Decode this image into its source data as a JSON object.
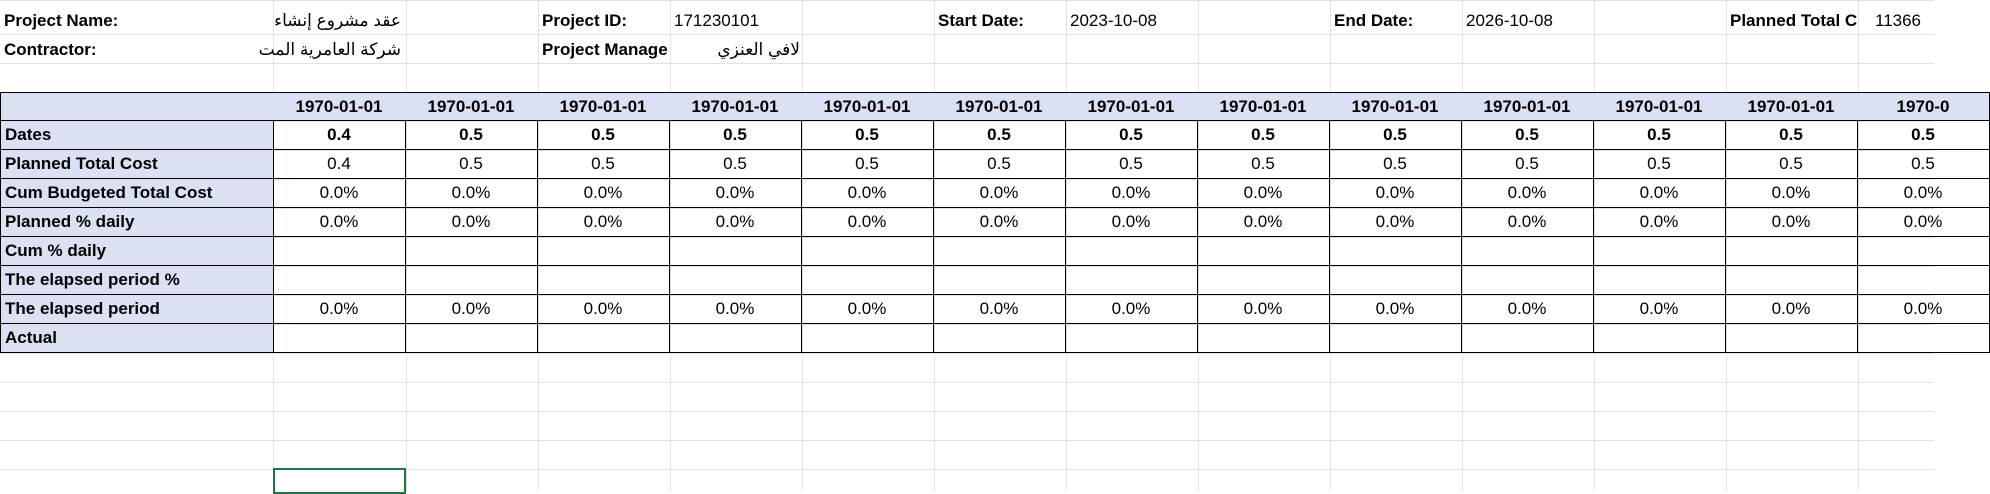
{
  "info": {
    "project_name_label": "Project Name:",
    "project_name_value": "عقد مشروع إنشاء",
    "contractor_label": "Contractor:",
    "contractor_value": "شركة العامرية المت",
    "project_id_label": "Project ID:",
    "project_id_value": "171230101",
    "project_manager_label": "Project Manage",
    "project_manager_value": "لافي العنزي",
    "start_date_label": "Start Date:",
    "start_date_value": "2023-10-08",
    "end_date_label": "End Date:",
    "end_date_value": "2026-10-08",
    "planned_total_label": "Planned Total C",
    "planned_total_value": "11366"
  },
  "table": {
    "header_dates": [
      "1970-01-01",
      "1970-01-01",
      "1970-01-01",
      "1970-01-01",
      "1970-01-01",
      "1970-01-01",
      "1970-01-01",
      "1970-01-01",
      "1970-01-01",
      "1970-01-01",
      "1970-01-01",
      "1970-01-01",
      "1970-0"
    ],
    "rows": [
      {
        "label": "Dates",
        "bold": true,
        "values": [
          "0.4",
          "0.5",
          "0.5",
          "0.5",
          "0.5",
          "0.5",
          "0.5",
          "0.5",
          "0.5",
          "0.5",
          "0.5",
          "0.5",
          "0.5"
        ]
      },
      {
        "label": "Planned Total Cost",
        "bold": false,
        "values": [
          "0.4",
          "0.5",
          "0.5",
          "0.5",
          "0.5",
          "0.5",
          "0.5",
          "0.5",
          "0.5",
          "0.5",
          "0.5",
          "0.5",
          "0.5"
        ]
      },
      {
        "label": "Cum Budgeted Total Cost",
        "bold": false,
        "values": [
          "0.0%",
          "0.0%",
          "0.0%",
          "0.0%",
          "0.0%",
          "0.0%",
          "0.0%",
          "0.0%",
          "0.0%",
          "0.0%",
          "0.0%",
          "0.0%",
          "0.0%"
        ]
      },
      {
        "label": "Planned % daily",
        "bold": false,
        "values": [
          "0.0%",
          "0.0%",
          "0.0%",
          "0.0%",
          "0.0%",
          "0.0%",
          "0.0%",
          "0.0%",
          "0.0%",
          "0.0%",
          "0.0%",
          "0.0%",
          "0.0%"
        ]
      },
      {
        "label": "Cum % daily",
        "bold": false,
        "values": [
          "",
          "",
          "",
          "",
          "",
          "",
          "",
          "",
          "",
          "",
          "",
          "",
          ""
        ]
      },
      {
        "label": "The elapsed period %",
        "bold": false,
        "values": [
          "",
          "",
          "",
          "",
          "",
          "",
          "",
          "",
          "",
          "",
          "",
          "",
          ""
        ]
      },
      {
        "label": "The elapsed period",
        "bold": false,
        "values": [
          "0.0%",
          "0.0%",
          "0.0%",
          "0.0%",
          "0.0%",
          "0.0%",
          "0.0%",
          "0.0%",
          "0.0%",
          "0.0%",
          "0.0%",
          "0.0%",
          "0.0%"
        ]
      },
      {
        "label": "Actual",
        "bold": false,
        "values": [
          "",
          "",
          "",
          "",
          "",
          "",
          "",
          "",
          "",
          "",
          "",
          "",
          ""
        ]
      }
    ]
  },
  "colors": {
    "header_fill": "#d9e1f2",
    "selection_border": "#217346",
    "gridline": "#e3e3e3"
  }
}
